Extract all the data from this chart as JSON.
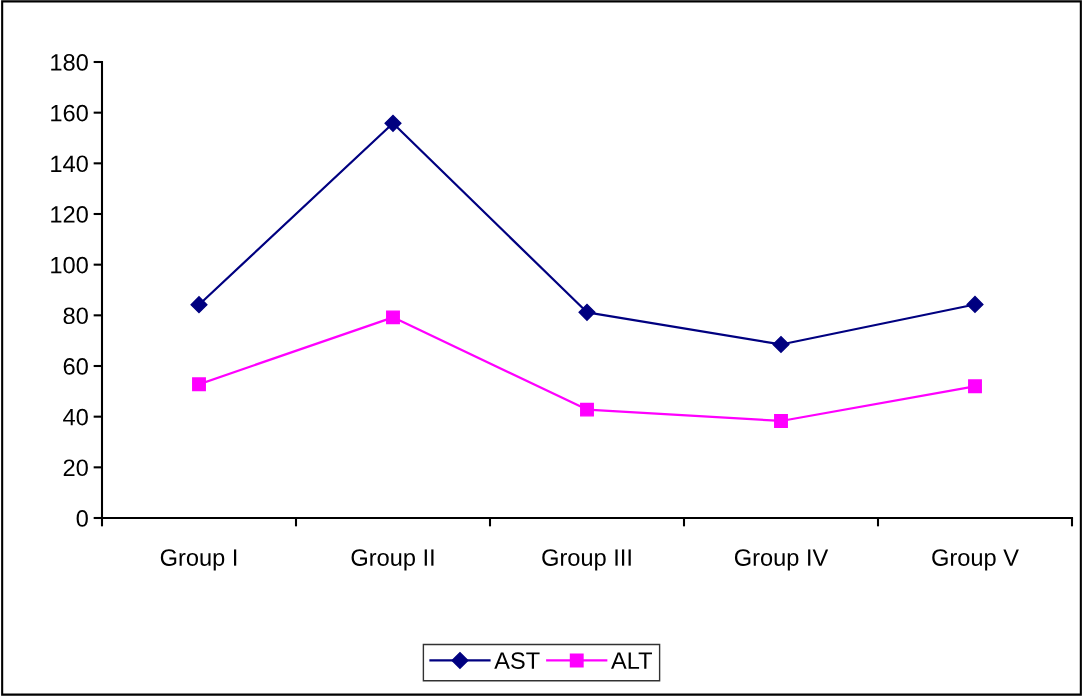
{
  "chart_data": {
    "type": "line",
    "categories": [
      "Group I",
      "Group II",
      "Group III",
      "Group IV",
      "Group V"
    ],
    "series": [
      {
        "name": "AST",
        "color": "#000080",
        "marker": "diamond",
        "values": [
          84.2,
          155.8,
          81.2,
          68.5,
          84.3
        ]
      },
      {
        "name": "ALT",
        "color": "#ff00ff",
        "marker": "square",
        "values": [
          52.8,
          79.2,
          42.8,
          38.3,
          52.0
        ]
      }
    ],
    "ylim": [
      0,
      180
    ],
    "yticks": [
      0,
      20,
      40,
      60,
      80,
      100,
      120,
      140,
      160,
      180
    ],
    "grid": false,
    "legend": "bottom",
    "line_style": "solid"
  }
}
